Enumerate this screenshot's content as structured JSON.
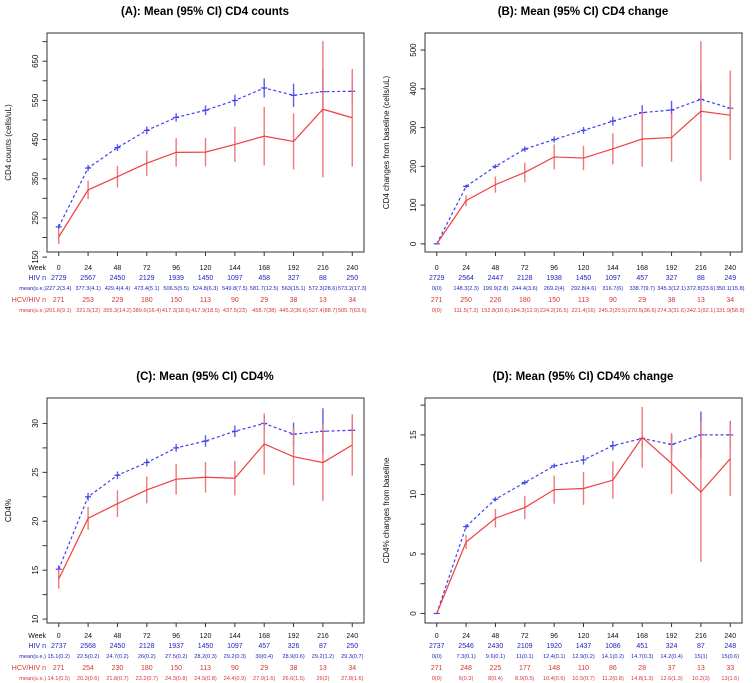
{
  "figure": {
    "description_visible_series": [
      "HIV",
      "HCV/HIV"
    ],
    "ci_multiplier": 1.96,
    "legend": "none"
  },
  "colors": {
    "hiv_line": "#4040ee",
    "hcv_line": "#ee4040",
    "hiv_err": "#5c5ce8",
    "hcv_err": "#f07878",
    "hiv_text": "#2222bb",
    "hcv_text": "#dd3333",
    "axis": "#333333",
    "text": "#111111"
  },
  "chart_data": [
    {
      "type": "line",
      "title": "(A): Mean (95% CI) CD4 counts",
      "ylabel": "CD4 counts (cells/uL)",
      "x_label": "Week",
      "x": [
        0,
        24,
        48,
        72,
        96,
        120,
        144,
        168,
        192,
        216,
        240
      ],
      "ylim": [
        163,
        722
      ],
      "yticks": [
        150,
        250,
        350,
        450,
        550,
        650
      ],
      "yticks_minor": [
        200,
        300,
        400,
        500,
        600,
        700
      ],
      "grid": false,
      "table_row_labels": [
        "Week",
        "HIV  n",
        "mean(s.e.)",
        "HCV/HIV  n",
        "mean(s.e.)"
      ],
      "series": [
        {
          "name": "HIV",
          "style": "dashed",
          "color": "hiv",
          "n": [
            2729,
            2567,
            2450,
            2129,
            1939,
            1450,
            1097,
            458,
            327,
            88,
            250
          ],
          "means": [
            227.2,
            377.3,
            429.4,
            473.4,
            506.5,
            524.8,
            549.8,
            581.7,
            563,
            572.3,
            573.2
          ],
          "se": [
            3.4,
            4.1,
            4.4,
            5.1,
            5.5,
            6.3,
            7.5,
            12.5,
            15.1,
            28.6,
            17.3
          ]
        },
        {
          "name": "HCV/HIV",
          "style": "solid",
          "color": "hcv",
          "n": [
            271,
            253,
            229,
            180,
            150,
            113,
            90,
            29,
            38,
            13,
            34
          ],
          "means": [
            201.6,
            321.5,
            355.3,
            389.6,
            417.3,
            417.9,
            437.5,
            458.7,
            445.2,
            527.4,
            505.7
          ],
          "se": [
            9.1,
            12,
            14.2,
            16.4,
            18.6,
            18.5,
            23,
            38,
            36.6,
            88.7,
            63.6
          ]
        }
      ]
    },
    {
      "type": "line",
      "title": "(B): Mean (95% CI) CD4 change",
      "ylabel": "CD4 changes from baseline (cells/uL)",
      "x_label": "",
      "x": [
        0,
        24,
        48,
        72,
        96,
        120,
        144,
        168,
        192,
        216,
        240
      ],
      "ylim": [
        -21,
        544
      ],
      "yticks": [
        0,
        100,
        200,
        300,
        400,
        500
      ],
      "yticks_minor": [],
      "grid": false,
      "table_row_labels": [
        "",
        "",
        "",
        "",
        ""
      ],
      "series": [
        {
          "name": "HIV",
          "style": "dashed",
          "color": "hiv",
          "n": [
            2729,
            2564,
            2447,
            2128,
            1938,
            1450,
            1097,
            457,
            327,
            88,
            249
          ],
          "means": [
            0,
            148.3,
            199.9,
            244.4,
            269.2,
            292.8,
            316.7,
            338.7,
            345.3,
            372.8,
            350.1
          ],
          "se": [
            0,
            2.3,
            2.8,
            3.6,
            4,
            4.6,
            6,
            9.7,
            12.1,
            23.6,
            15.8
          ]
        },
        {
          "name": "HCV/HIV",
          "style": "solid",
          "color": "hcv",
          "n": [
            271,
            250,
            226,
            180,
            150,
            113,
            90,
            29,
            38,
            13,
            34
          ],
          "means": [
            0,
            111.5,
            152.8,
            184.3,
            224.2,
            221.4,
            245.2,
            270.5,
            274.3,
            342.1,
            331.9
          ],
          "se": [
            0,
            7.2,
            10.6,
            12.9,
            16.5,
            16,
            20.5,
            36.6,
            31.6,
            92.1,
            58.8
          ]
        }
      ]
    },
    {
      "type": "line",
      "title": "(C): Mean (95% CI) CD4%",
      "ylabel": "CD4%",
      "x_label": "Week",
      "x": [
        0,
        24,
        48,
        72,
        96,
        120,
        144,
        168,
        192,
        216,
        240
      ],
      "ylim": [
        9.6,
        32.6
      ],
      "yticks": [
        10,
        15,
        20,
        25,
        30
      ],
      "yticks_minor": [
        12.5,
        17.5,
        22.5,
        27.5
      ],
      "grid": false,
      "table_row_labels": [
        "Week",
        "HIV  n",
        "mean(s.e.)",
        "HCV/HIV  n",
        "mean(s.e.)"
      ],
      "series": [
        {
          "name": "HIV",
          "style": "dashed",
          "color": "hiv",
          "n": [
            2737,
            2568,
            2450,
            2128,
            1937,
            1450,
            1097,
            457,
            326,
            87,
            250
          ],
          "means": [
            15.1,
            22.5,
            24.7,
            26,
            27.5,
            28.2,
            29.2,
            30,
            28.9,
            29.2,
            29.3
          ],
          "se": [
            0.2,
            0.2,
            0.2,
            0.2,
            0.2,
            0.3,
            0.3,
            0.4,
            0.6,
            1.2,
            0.7
          ]
        },
        {
          "name": "HCV/HIV",
          "style": "solid",
          "color": "hcv",
          "n": [
            271,
            254,
            230,
            180,
            150,
            113,
            90,
            29,
            38,
            13,
            34
          ],
          "means": [
            14.1,
            20.3,
            21.8,
            23.2,
            24.3,
            24.5,
            24.4,
            27.9,
            26.6,
            26,
            27.8
          ],
          "se": [
            0.5,
            0.6,
            0.7,
            0.7,
            0.8,
            0.8,
            0.9,
            1.6,
            1.5,
            2,
            1.6
          ]
        }
      ]
    },
    {
      "type": "line",
      "title": "(D): Mean (95% CI) CD4% change",
      "ylabel": "CD4% changes from baseline",
      "x_label": "",
      "x": [
        0,
        24,
        48,
        72,
        96,
        120,
        144,
        168,
        192,
        216,
        240
      ],
      "ylim": [
        -0.8,
        18.1
      ],
      "yticks": [
        0,
        5,
        10,
        15
      ],
      "yticks_minor": [
        2.5,
        7.5,
        12.5,
        17.5
      ],
      "grid": false,
      "table_row_labels": [
        "",
        "",
        "",
        "",
        ""
      ],
      "series": [
        {
          "name": "HIV",
          "style": "dashed",
          "color": "hiv",
          "n": [
            2737,
            2546,
            2430,
            2109,
            1920,
            1437,
            1086,
            451,
            324,
            87,
            248
          ],
          "means": [
            0,
            7.3,
            9.6,
            11,
            12.4,
            12.9,
            14.1,
            14.7,
            14.2,
            15,
            15
          ],
          "se": [
            0,
            0.1,
            0.1,
            0.1,
            0.1,
            0.2,
            0.2,
            0.3,
            0.4,
            1,
            0.6
          ]
        },
        {
          "name": "HCV/HIV",
          "style": "solid",
          "color": "hcv",
          "n": [
            271,
            248,
            225,
            177,
            148,
            110,
            86,
            28,
            37,
            13,
            33
          ],
          "means": [
            0,
            6,
            8,
            8.9,
            10.4,
            10.5,
            11.2,
            14.8,
            12.6,
            10.2,
            13
          ],
          "se": [
            0,
            0.3,
            0.4,
            0.5,
            0.6,
            0.7,
            0.8,
            1.3,
            1.3,
            3,
            1.6
          ]
        }
      ]
    }
  ]
}
